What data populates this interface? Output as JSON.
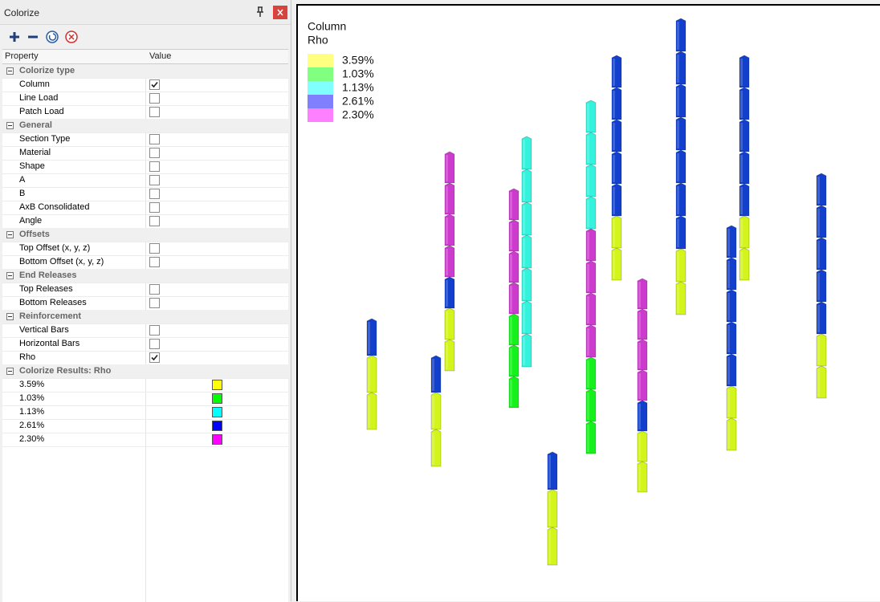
{
  "panel": {
    "title": "Colorize",
    "columns": [
      "Property",
      "Value"
    ],
    "groups": [
      {
        "name": "Colorize type",
        "rows": [
          {
            "label": "Column",
            "checked": true
          },
          {
            "label": "Line Load",
            "checked": false
          },
          {
            "label": "Patch Load",
            "checked": false
          }
        ]
      },
      {
        "name": "General",
        "rows": [
          {
            "label": "Section Type",
            "checked": false
          },
          {
            "label": "Material",
            "checked": false
          },
          {
            "label": "Shape",
            "checked": false
          },
          {
            "label": "A",
            "checked": false
          },
          {
            "label": "B",
            "checked": false
          },
          {
            "label": "AxB Consolidated",
            "checked": false
          },
          {
            "label": "Angle",
            "checked": false
          }
        ]
      },
      {
        "name": "Offsets",
        "rows": [
          {
            "label": "Top Offset (x, y, z)",
            "checked": false
          },
          {
            "label": "Bottom Offset (x, y, z)",
            "checked": false
          }
        ]
      },
      {
        "name": "End Releases",
        "rows": [
          {
            "label": "Top Releases",
            "checked": false
          },
          {
            "label": "Bottom Releases",
            "checked": false
          }
        ]
      },
      {
        "name": "Reinforcement",
        "rows": [
          {
            "label": "Vertical Bars",
            "checked": false
          },
          {
            "label": "Horizontal Bars",
            "checked": false
          },
          {
            "label": "Rho",
            "checked": true
          }
        ]
      }
    ],
    "results": {
      "name": "Colorize Results: Rho",
      "items": [
        {
          "label": "3.59%",
          "color": "#ffff00"
        },
        {
          "label": "1.03%",
          "color": "#00ff00"
        },
        {
          "label": "1.13%",
          "color": "#00ffff"
        },
        {
          "label": "2.61%",
          "color": "#0000ff"
        },
        {
          "label": "2.30%",
          "color": "#ff00ff"
        }
      ]
    }
  },
  "view": {
    "legend_title": [
      "Column",
      "Rho"
    ],
    "legend": [
      {
        "label": "3.59%",
        "color": "#ffff80"
      },
      {
        "label": "1.03%",
        "color": "#80ff80"
      },
      {
        "label": "1.13%",
        "color": "#80ffff"
      },
      {
        "label": "2.61%",
        "color": "#8080ff"
      },
      {
        "label": "2.30%",
        "color": "#ff80ff"
      }
    ]
  }
}
